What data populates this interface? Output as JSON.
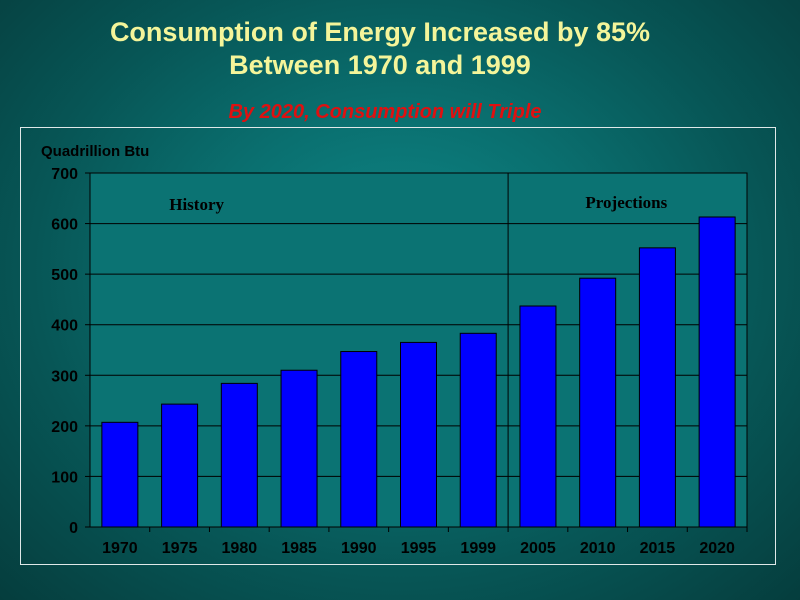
{
  "title_line1": "Consumption of Energy Increased by 85%",
  "title_line2": "Between 1970 and 1999",
  "subtitle": "By 2020, Consumption will Triple",
  "colors": {
    "bar": "#0000ff",
    "title": "#f4f59a",
    "subtitle": "#e01010",
    "plot_bg": "#0b7373"
  },
  "chart_data": {
    "type": "bar",
    "ylabel": "Quadrillion Btu",
    "ylim": [
      0,
      700
    ],
    "yticks": [
      0,
      100,
      200,
      300,
      400,
      500,
      600,
      700
    ],
    "grid": true,
    "categories": [
      "1970",
      "1975",
      "1980",
      "1985",
      "1990",
      "1995",
      "1999",
      "2005",
      "2010",
      "2015",
      "2020"
    ],
    "values": [
      207,
      243,
      284,
      310,
      347,
      365,
      383,
      437,
      492,
      552,
      613
    ],
    "annotations": {
      "history": "History",
      "projections": "Projections"
    },
    "divider_after": "1999"
  }
}
